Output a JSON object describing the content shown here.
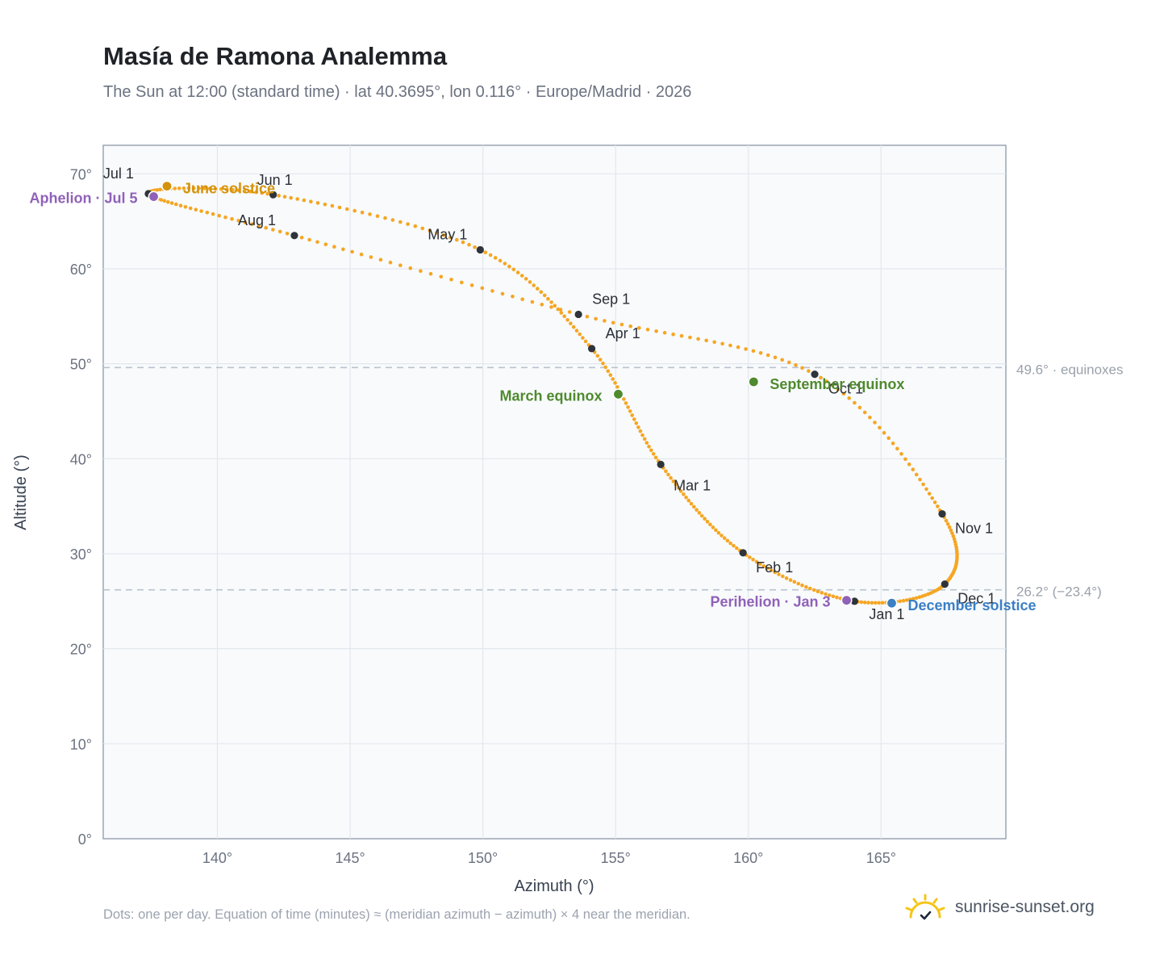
{
  "header": {
    "title": "Masía de Ramona Analemma",
    "subtitle": "The Sun at 12:00 (standard time) · lat 40.3695°, lon 0.116° · Europe/Madrid · 2026"
  },
  "footer": {
    "note": "Dots: one per day. Equation of time (minutes) ≈ (meridian azimuth − azimuth) × 4 near the meridian.",
    "brand": "sunrise-sunset.org"
  },
  "colors": {
    "curve": "#f5a623",
    "month_dot": "#2f343b",
    "solstice_june": "#d4920a",
    "solstice_december": "#3b7fc4",
    "equinox": "#4f8a2e",
    "apsis": "#9061b8",
    "reference_line": "#b9c3cf",
    "plot_bg": "#f8fafc",
    "grid": "#e3e8ee",
    "brand_sun": "#f5c518"
  },
  "chart_data": {
    "type": "scatter",
    "xlabel": "Azimuth (°)",
    "ylabel": "Altitude (°)",
    "xlim": [
      135.7,
      169.7
    ],
    "ylim": [
      0,
      73
    ],
    "x_ticks": [
      140,
      145,
      150,
      155,
      160,
      165
    ],
    "x_tick_labels": [
      "140°",
      "145°",
      "150°",
      "155°",
      "160°",
      "165°"
    ],
    "y_ticks": [
      0,
      10,
      20,
      30,
      40,
      50,
      60,
      70
    ],
    "y_tick_labels": [
      "0°",
      "10°",
      "20°",
      "30°",
      "40°",
      "50°",
      "60°",
      "70°"
    ],
    "grid": true,
    "reference_lines": [
      {
        "y": 49.6,
        "label": "49.6° · equinoxes"
      },
      {
        "y": 26.2,
        "label": "26.2° (−23.4°)"
      }
    ],
    "path_markers": [
      {
        "label": "Jan 1",
        "az": 164.0,
        "alt": 25.0
      },
      {
        "label": "Feb 1",
        "az": 159.8,
        "alt": 30.1
      },
      {
        "label": "Mar 1",
        "az": 156.7,
        "alt": 39.4
      },
      {
        "label": "Apr 1",
        "az": 154.1,
        "alt": 51.6
      },
      {
        "label": "May 1",
        "az": 149.9,
        "alt": 62.0
      },
      {
        "label": "Jun 1",
        "az": 142.1,
        "alt": 67.8
      },
      {
        "label": "Jul 1",
        "az": 137.4,
        "alt": 67.9
      },
      {
        "label": "Aug 1",
        "az": 142.9,
        "alt": 63.5
      },
      {
        "label": "Sep 1",
        "az": 153.6,
        "alt": 55.2
      },
      {
        "label": "Oct 1",
        "az": 162.5,
        "alt": 48.9
      },
      {
        "label": "Nov 1",
        "az": 167.3,
        "alt": 34.2
      },
      {
        "label": "Dec 1",
        "az": 167.4,
        "alt": 26.8
      }
    ],
    "events": [
      {
        "label": "June solstice",
        "az": 138.1,
        "alt": 68.7,
        "kind": "solstice_june"
      },
      {
        "label": "December solstice",
        "az": 165.4,
        "alt": 24.8,
        "kind": "solstice_december"
      },
      {
        "label": "March equinox",
        "az": 155.1,
        "alt": 46.8,
        "kind": "equinox"
      },
      {
        "label": "September equinox",
        "az": 160.2,
        "alt": 48.1,
        "kind": "equinox"
      },
      {
        "label": "Aphelion · Jul 5",
        "az": 137.6,
        "alt": 67.6,
        "kind": "apsis"
      },
      {
        "label": "Perihelion · Jan 3",
        "az": 163.7,
        "alt": 25.1,
        "kind": "apsis"
      }
    ]
  }
}
